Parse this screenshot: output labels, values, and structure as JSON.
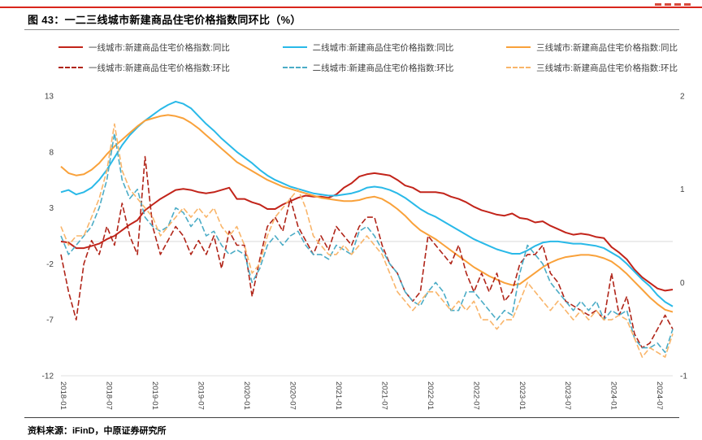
{
  "page": {
    "title": "图 43：一二三线城市新建商品住宅价格指数同环比（%）",
    "source": "资料来源：iFinD，中原证券研究所",
    "accent_color": "#d9261c"
  },
  "chart_data": {
    "type": "line",
    "title": "一二三线城市新建商品住宅价格指数同环比（%）",
    "n_points": 81,
    "grid": "zero-line-only",
    "legend_position": "top",
    "x_tick_labels": [
      "2018-01",
      "2018-07",
      "2019-01",
      "2019-07",
      "2020-01",
      "2020-07",
      "2021-01",
      "2021-07",
      "2022-01",
      "2022-07",
      "2023-01",
      "2023-07",
      "2024-01",
      "2024-07"
    ],
    "x_tick_indices": [
      0,
      6,
      12,
      18,
      24,
      30,
      36,
      42,
      48,
      54,
      60,
      66,
      72,
      78
    ],
    "left_axis": {
      "ticks": [
        13,
        8,
        3,
        -2,
        -7,
        -12
      ],
      "min": -12,
      "max": 13
    },
    "right_axis": {
      "ticks": [
        2,
        1,
        0,
        -1
      ],
      "min": -1,
      "max": 2
    },
    "series": [
      {
        "name": "一线城市:新建商品住宅价格指数:同比",
        "color": "#c2241a",
        "dash": false,
        "axis": "left",
        "values": [
          0.0,
          -0.1,
          -0.6,
          -0.6,
          -0.4,
          -0.2,
          0.2,
          0.5,
          1.0,
          1.5,
          1.9,
          2.8,
          3.3,
          3.8,
          4.2,
          4.6,
          4.7,
          4.6,
          4.4,
          4.3,
          4.4,
          4.6,
          4.8,
          3.8,
          3.8,
          3.5,
          3.3,
          2.9,
          2.9,
          3.3,
          3.6,
          3.9,
          4.1,
          4.0,
          4.0,
          3.9,
          4.2,
          4.8,
          5.2,
          5.8,
          6.0,
          6.1,
          6.0,
          5.9,
          5.5,
          5.0,
          4.8,
          4.4,
          4.4,
          4.4,
          4.3,
          4.0,
          3.8,
          3.5,
          3.1,
          2.8,
          2.6,
          2.4,
          2.3,
          2.5,
          2.1,
          2.0,
          1.7,
          1.8,
          1.4,
          1.1,
          0.8,
          0.6,
          0.7,
          0.6,
          0.4,
          0.3,
          -0.5,
          -1.0,
          -1.6,
          -2.5,
          -3.2,
          -3.7,
          -4.2,
          -4.4,
          -4.3
        ]
      },
      {
        "name": "二线城市:新建商品住宅价格指数:同比",
        "color": "#29b9e8",
        "dash": false,
        "axis": "left",
        "values": [
          4.4,
          4.6,
          4.2,
          4.4,
          4.8,
          5.5,
          6.4,
          7.5,
          8.6,
          9.5,
          10.2,
          10.8,
          11.3,
          11.8,
          12.2,
          12.5,
          12.3,
          11.9,
          11.2,
          10.5,
          9.9,
          9.2,
          8.6,
          8.0,
          7.5,
          7.0,
          6.4,
          5.9,
          5.5,
          5.2,
          4.9,
          4.7,
          4.5,
          4.3,
          4.2,
          4.1,
          4.1,
          4.2,
          4.3,
          4.5,
          4.8,
          4.9,
          4.8,
          4.6,
          4.3,
          3.9,
          3.4,
          2.9,
          2.5,
          2.2,
          1.8,
          1.4,
          1.0,
          0.6,
          0.2,
          -0.1,
          -0.4,
          -0.7,
          -0.9,
          -1.1,
          -1.1,
          -0.8,
          -0.4,
          -0.1,
          0.0,
          0.0,
          -0.1,
          -0.2,
          -0.2,
          -0.3,
          -0.4,
          -0.6,
          -1.0,
          -1.4,
          -2.0,
          -2.7,
          -3.4,
          -4.0,
          -4.8,
          -5.4,
          -5.8
        ]
      },
      {
        "name": "三线城市:新建商品住宅价格指数:同比",
        "color": "#f9a13a",
        "dash": false,
        "axis": "left",
        "values": [
          6.7,
          6.1,
          5.9,
          6.0,
          6.4,
          7.0,
          7.8,
          8.5,
          9.1,
          9.7,
          10.3,
          10.8,
          11.0,
          11.2,
          11.3,
          11.2,
          11.0,
          10.6,
          10.1,
          9.5,
          8.9,
          8.3,
          7.7,
          7.1,
          6.7,
          6.3,
          5.9,
          5.5,
          5.2,
          4.9,
          4.7,
          4.5,
          4.3,
          4.1,
          3.9,
          3.8,
          3.7,
          3.6,
          3.6,
          3.7,
          3.9,
          4.0,
          3.8,
          3.4,
          2.9,
          2.3,
          1.6,
          1.0,
          0.6,
          0.2,
          -0.3,
          -0.8,
          -1.3,
          -1.8,
          -2.3,
          -2.7,
          -3.1,
          -3.4,
          -3.7,
          -3.9,
          -3.8,
          -3.3,
          -2.8,
          -2.3,
          -1.9,
          -1.6,
          -1.4,
          -1.3,
          -1.2,
          -1.2,
          -1.3,
          -1.5,
          -1.8,
          -2.3,
          -2.9,
          -3.6,
          -4.3,
          -5.0,
          -5.6,
          -6.1,
          -6.3
        ]
      },
      {
        "name": "一线城市:新建商品住宅价格指数:环比",
        "color": "#b02418",
        "dash": true,
        "axis": "right",
        "values": [
          0.3,
          -0.1,
          -0.4,
          0.2,
          0.45,
          0.3,
          0.6,
          0.4,
          0.85,
          0.5,
          0.3,
          1.35,
          0.6,
          0.3,
          0.45,
          0.6,
          0.5,
          0.3,
          0.45,
          0.3,
          0.5,
          0.15,
          0.55,
          0.4,
          0.4,
          -0.15,
          0.25,
          0.6,
          0.7,
          0.55,
          0.9,
          0.6,
          0.45,
          0.3,
          0.5,
          0.35,
          0.6,
          0.5,
          0.4,
          0.6,
          0.7,
          0.7,
          0.4,
          0.2,
          0.1,
          -0.1,
          -0.2,
          -0.1,
          0.5,
          0.4,
          0.3,
          0.2,
          0.4,
          0.1,
          -0.1,
          0.1,
          -0.1,
          0.1,
          -0.2,
          -0.1,
          0.2,
          0.3,
          0.3,
          0.4,
          0.1,
          0.0,
          -0.2,
          -0.25,
          -0.3,
          -0.35,
          -0.3,
          -0.4,
          0.1,
          -0.35,
          -0.15,
          -0.55,
          -0.7,
          -0.65,
          -0.5,
          -0.35,
          -0.5
        ]
      },
      {
        "name": "二线城市:新建商品住宅价格指数:环比",
        "color": "#4bacc6",
        "dash": true,
        "axis": "right",
        "values": [
          0.5,
          0.3,
          0.4,
          0.5,
          0.6,
          0.8,
          1.1,
          1.6,
          1.1,
          0.9,
          1.0,
          0.7,
          0.6,
          0.55,
          0.6,
          0.8,
          0.75,
          0.6,
          0.7,
          0.5,
          0.55,
          0.4,
          0.3,
          0.35,
          0.3,
          0.0,
          0.15,
          0.4,
          0.5,
          0.4,
          0.5,
          0.55,
          0.4,
          0.3,
          0.3,
          0.25,
          0.4,
          0.35,
          0.3,
          0.55,
          0.6,
          0.5,
          0.35,
          0.2,
          0.1,
          -0.1,
          -0.2,
          -0.25,
          -0.1,
          0.0,
          -0.1,
          -0.3,
          -0.3,
          -0.1,
          -0.1,
          -0.2,
          -0.3,
          -0.4,
          -0.3,
          -0.35,
          0.1,
          0.4,
          0.3,
          0.2,
          0.0,
          -0.1,
          -0.2,
          -0.3,
          -0.2,
          -0.3,
          -0.2,
          -0.4,
          -0.3,
          -0.35,
          -0.3,
          -0.6,
          -0.7,
          -0.7,
          -0.65,
          -0.75,
          -0.5
        ]
      },
      {
        "name": "三线城市:新建商品住宅价格指数:环比",
        "color": "#f9b56a",
        "dash": true,
        "axis": "right",
        "values": [
          0.6,
          0.4,
          0.5,
          0.5,
          0.7,
          0.9,
          1.2,
          1.7,
          1.2,
          1.0,
          0.9,
          0.8,
          0.7,
          0.5,
          0.6,
          0.7,
          0.8,
          0.7,
          0.8,
          0.7,
          0.8,
          0.6,
          0.5,
          0.6,
          0.4,
          0.1,
          0.2,
          0.5,
          0.7,
          0.8,
          0.9,
          1.0,
          0.8,
          0.5,
          0.4,
          0.3,
          0.3,
          0.4,
          0.3,
          0.4,
          0.5,
          0.4,
          0.3,
          0.1,
          -0.1,
          -0.2,
          -0.3,
          -0.2,
          -0.1,
          -0.1,
          -0.2,
          -0.3,
          -0.2,
          -0.3,
          -0.2,
          -0.4,
          -0.4,
          -0.5,
          -0.4,
          -0.4,
          -0.2,
          0.0,
          -0.1,
          -0.2,
          -0.3,
          -0.2,
          -0.3,
          -0.4,
          -0.3,
          -0.4,
          -0.3,
          -0.4,
          -0.4,
          -0.35,
          -0.4,
          -0.6,
          -0.8,
          -0.7,
          -0.75,
          -0.8,
          -0.55
        ]
      }
    ]
  }
}
